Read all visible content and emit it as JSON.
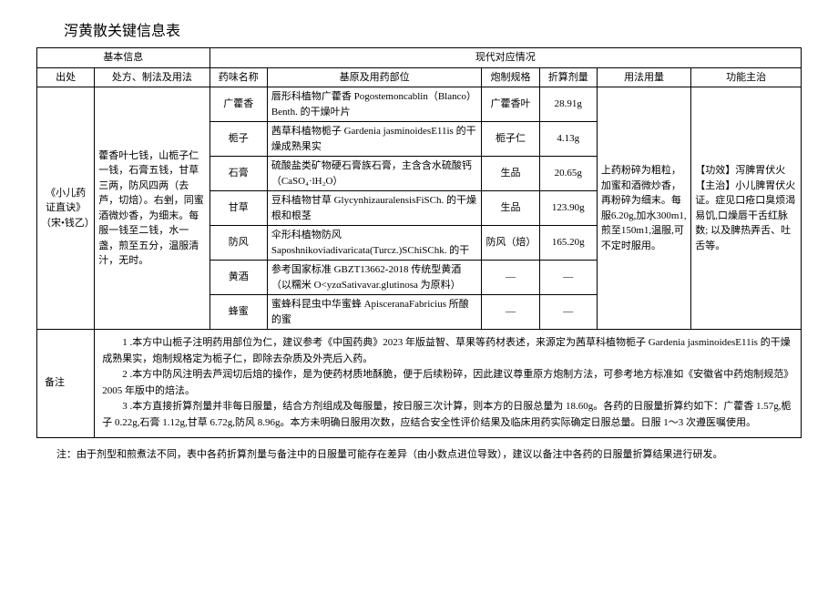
{
  "title": "泻黄散关键信息表",
  "headers": {
    "basic": "基本信息",
    "modern": "现代对应情况",
    "source": "出处",
    "rx": "处方、制法及用法",
    "herb": "药味名称",
    "origin": "基原及用药部位",
    "spec": "炮制规格",
    "amount": "折算剂量",
    "usage": "用法用量",
    "function": "功能主治"
  },
  "source": "《小儿药证直诀》（宋•钱乙）",
  "rx": "藿香叶七钱，山栀子仁一钱，石膏五钱，甘草三两，防风四两（去芦，切焙）。右剉，同蜜酒微炒香，为细末。每服一钱至二钱，水一盏，煎至五分，温服清汁，无时。",
  "usage": "上药粉碎为粗粒，加蜜和酒微炒香，再粉碎为细末。每服6.20g,加水300m1,煎至150m1,温服,可不定时服用。",
  "function": "【功效】泻脾胃伏火【主治】小儿脾胃伏火证。症见口疮口臭烦渴易饥,口燥唇干舌红脉数; 以及脾热弄舌、吐舌等。",
  "rows": [
    {
      "herb": "广藿香",
      "origin": "唇形科植物广藿香 Pogostemoncablin（Blanco）Benth. 的干燥叶片",
      "spec": "广藿香叶",
      "amount": "28.91g"
    },
    {
      "herb": "栀子",
      "origin": "茜草科植物栀子 Gardenia jasminoidesE11is 的干燥成熟果实",
      "spec": "栀子仁",
      "amount": "4.13g"
    },
    {
      "herb": "石膏",
      "origin": "硫酸盐类矿物硬石膏族石膏，主含含水硫酸钙（CaSO₄·lH₂O）",
      "spec": "生品",
      "amount": "20.65g"
    },
    {
      "herb": "甘草",
      "origin": "豆科植物甘草 GlycynhizauralensisFiSCh. 的干燥根和根茎",
      "spec": "生品",
      "amount": "123.90g"
    },
    {
      "herb": "防风",
      "origin": "伞形科植物防风Saposhnikoviadivaricata(Turcz.)SChiSChk. 的干",
      "spec": "防风（焙）",
      "amount": "165.20g"
    },
    {
      "herb": "黄酒",
      "origin": "参考国家标准 GBZT13662-2018 传统型黄酒（以糯米 O<yzαSativavar.glutinosa 为原料）",
      "spec": "—",
      "amount": "—"
    },
    {
      "herb": "蜂蜜",
      "origin": "蜜蜂科昆虫中华蜜蜂 ApisceranaFabricius 所酿的蜜",
      "spec": "—",
      "amount": "—"
    }
  ],
  "notes_label": "备注",
  "notes": [
    "1 .本方中山栀子注明药用部位为仁，建议参考《中国药典》2023 年版益智、草果等药材表述，来源定为茜草科植物栀子 Gardenia jasminoidesE11is 的干燥成熟果实，炮制规格定为栀子仁，即除去杂质及外壳后入药。",
    "2 .本方中防风注明去芦润切后焙的操作，是为使药材质地酥脆，便于后续粉碎，因此建议尊重原方炮制方法，可参考地方标准如《安徽省中药炮制规范》2005 年版中的焙法。",
    "3 .本方直接折算剂量并非每日服量，结合方剂组成及每服量，按日服三次计算，则本方的日服总量为 18.60g。各药的日服量折算约如下：广藿香 1.57g,栀子 0.22g,石膏 1.12g,甘草 6.72g,防风 8.96g。本方未明确日服用次数，应结合安全性评价结果及临床用药实际确定日服总量。日服 1～3 次遵医嘱使用。"
  ],
  "footer": "注：由于剂型和煎煮法不同，表中各药折算剂量与备注中的日服量可能存在差异（由小数点进位导致），建议以备注中各药的日服量折算结果进行研发。"
}
